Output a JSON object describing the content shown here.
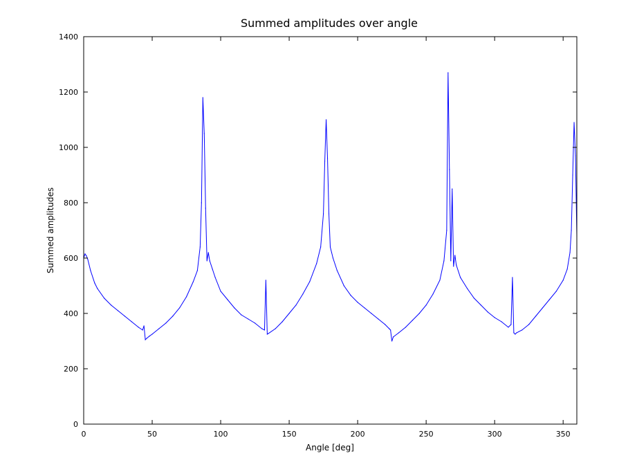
{
  "chart_data": {
    "type": "line",
    "title": "Summed amplitudes over angle",
    "xlabel": "Angle [deg]",
    "ylabel": "Summed amplitudes",
    "xlim": [
      0,
      360
    ],
    "ylim": [
      0,
      1400
    ],
    "xticks": [
      0,
      50,
      100,
      150,
      200,
      250,
      300,
      350
    ],
    "yticks": [
      0,
      200,
      400,
      600,
      800,
      1000,
      1200,
      1400
    ],
    "grid": false,
    "legend": "none",
    "colors": {
      "line": "#0000ff",
      "axes": "#000000",
      "background": "#ffffff"
    },
    "series": [
      {
        "x": [
          0,
          1,
          2,
          3,
          5,
          8,
          10,
          15,
          20,
          25,
          30,
          35,
          40,
          43,
          44,
          45,
          46,
          48,
          50,
          55,
          60,
          65,
          70,
          75,
          80,
          83,
          85,
          86,
          87,
          88,
          89,
          90,
          91,
          92,
          94,
          96,
          100,
          105,
          110,
          115,
          120,
          125,
          130,
          132,
          133,
          134,
          135,
          140,
          145,
          150,
          155,
          160,
          165,
          170,
          173,
          175,
          176,
          177,
          178,
          179,
          180,
          181,
          182,
          185,
          190,
          195,
          200,
          205,
          210,
          215,
          220,
          223,
          224,
          225,
          226,
          230,
          235,
          240,
          245,
          250,
          255,
          260,
          263,
          265,
          266,
          267,
          268,
          269,
          270,
          271,
          272,
          275,
          280,
          285,
          290,
          295,
          300,
          305,
          310,
          312,
          313,
          314,
          315,
          316,
          320,
          325,
          330,
          335,
          340,
          345,
          350,
          353,
          355,
          356,
          357,
          358,
          359,
          360
        ],
        "y": [
          600,
          615,
          608,
          595,
          555,
          510,
          490,
          455,
          430,
          410,
          390,
          370,
          350,
          340,
          355,
          305,
          310,
          318,
          325,
          345,
          365,
          390,
          420,
          460,
          515,
          555,
          640,
          800,
          1180,
          1050,
          780,
          590,
          620,
          590,
          560,
          530,
          480,
          450,
          420,
          395,
          380,
          365,
          345,
          340,
          520,
          325,
          328,
          345,
          370,
          400,
          430,
          470,
          515,
          580,
          640,
          760,
          950,
          1100,
          960,
          760,
          640,
          620,
          600,
          555,
          500,
          465,
          440,
          420,
          400,
          380,
          360,
          345,
          340,
          300,
          315,
          330,
          350,
          375,
          400,
          430,
          470,
          520,
          590,
          700,
          1270,
          920,
          590,
          850,
          570,
          610,
          575,
          530,
          490,
          455,
          430,
          405,
          385,
          370,
          350,
          360,
          530,
          330,
          325,
          330,
          340,
          360,
          390,
          420,
          450,
          480,
          520,
          560,
          620,
          700,
          900,
          1090,
          970,
          680
        ]
      }
    ]
  }
}
